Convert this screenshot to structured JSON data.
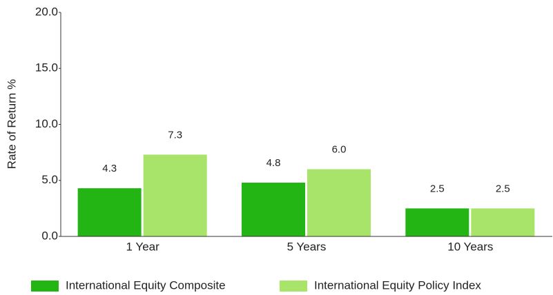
{
  "chart_data": {
    "type": "bar",
    "y_label": "Rate of Return %",
    "categories": [
      "1 Year",
      "5 Years",
      "10 Years"
    ],
    "series": [
      {
        "name": "International Equity Composite",
        "color": "#22b514",
        "values": [
          4.3,
          4.8,
          2.5
        ],
        "value_labels": [
          "4.3",
          "4.8",
          "2.5"
        ]
      },
      {
        "name": "International Equity Policy Index",
        "color": "#a8e36a",
        "values": [
          7.3,
          6.0,
          2.5
        ],
        "value_labels": [
          "7.3",
          "6.0",
          "2.5"
        ]
      }
    ],
    "ylim": [
      0,
      20
    ],
    "yticks": [
      {
        "value": 0,
        "label": "0.0"
      },
      {
        "value": 5,
        "label": "5.0"
      },
      {
        "value": 10,
        "label": "10.0"
      },
      {
        "value": 15,
        "label": "15.0"
      },
      {
        "value": 20,
        "label": "20.0"
      }
    ]
  }
}
